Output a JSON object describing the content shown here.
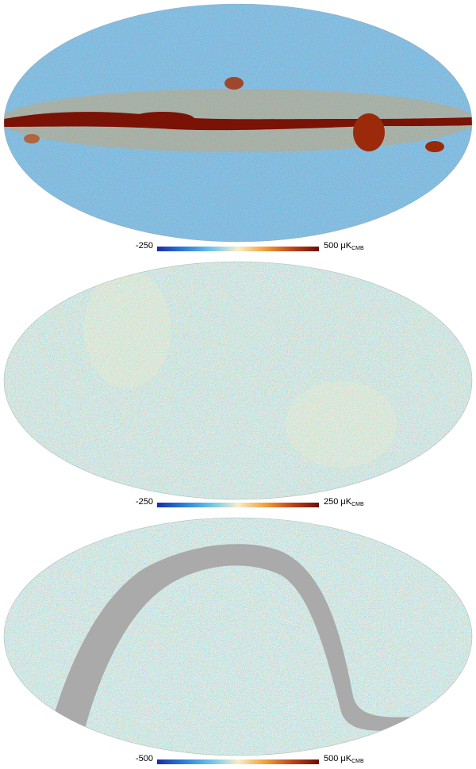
{
  "maps": [
    {
      "colorbar": {
        "min": "-250",
        "max": "500",
        "unit_main": "μK",
        "unit_sub": "CMB"
      },
      "overlay": "galactic-plane",
      "noise_level": 0.55
    },
    {
      "colorbar": {
        "min": "-250",
        "max": "250",
        "unit_main": "μK",
        "unit_sub": "CMB"
      },
      "overlay": "none",
      "noise_level": 0.9
    },
    {
      "colorbar": {
        "min": "-500",
        "max": "500",
        "unit_main": "μK",
        "unit_sub": "CMB"
      },
      "overlay": "ecliptic-mask",
      "noise_level": 0.95
    }
  ],
  "colors": {
    "colormap": [
      "#1a2ca8",
      "#2d7fd8",
      "#6cc4ea",
      "#f5efc8",
      "#f0a13a",
      "#c0441a",
      "#6b0f05"
    ],
    "mask": "#aaaaaa",
    "background": "#ffffff"
  }
}
